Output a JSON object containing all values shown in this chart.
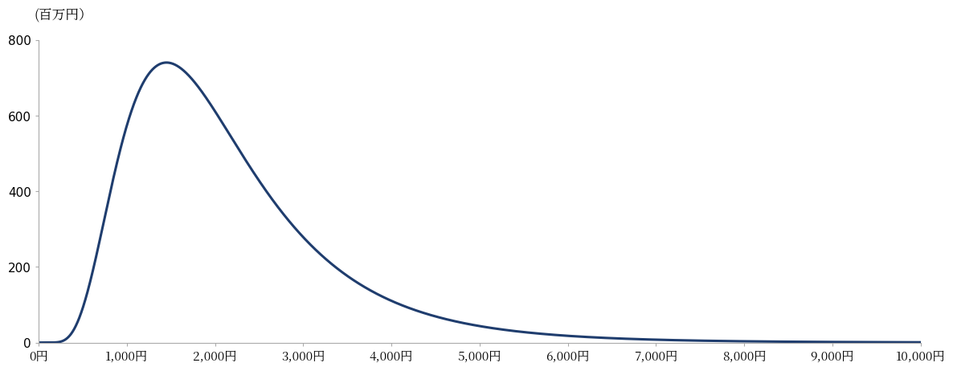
{
  "ylabel": "(百万円）",
  "ylim": [
    0,
    800
  ],
  "yticks": [
    0,
    200,
    400,
    600,
    800
  ],
  "xlim": [
    0,
    10000
  ],
  "xticks": [
    0,
    1000,
    2000,
    3000,
    4000,
    5000,
    6000,
    7000,
    8000,
    9000,
    10000
  ],
  "xtick_labels": [
    "0円",
    "1,000円",
    "2,000円",
    "3,000円",
    "4,000円",
    "5,000円",
    "6,000円",
    "7,000円",
    "8,000円",
    "9,000円",
    "10,000円"
  ],
  "line_color": "#1f3d6e",
  "line_width": 2.2,
  "background_color": "#ffffff",
  "ylabel_fontsize": 12,
  "tick_fontsize": 11,
  "mu": 7.55,
  "sigma": 0.52,
  "peak_y": 740
}
